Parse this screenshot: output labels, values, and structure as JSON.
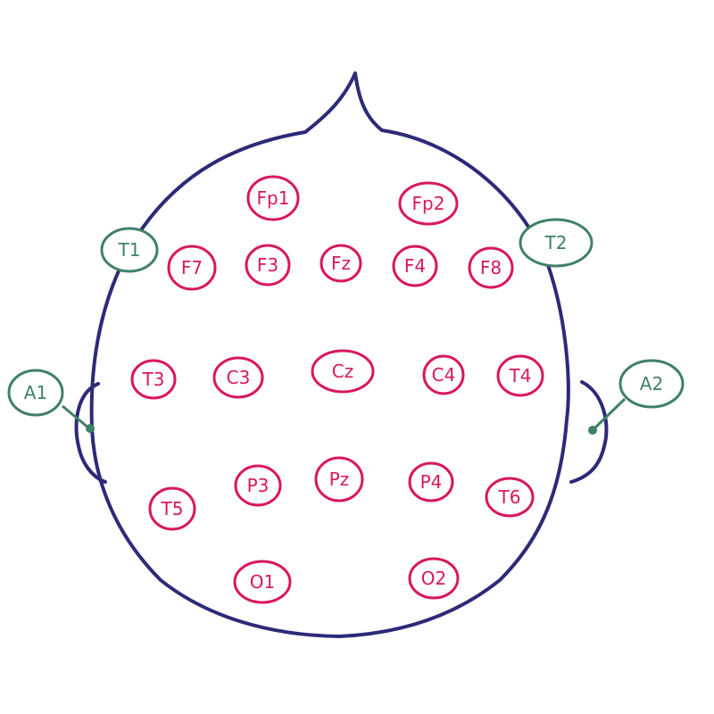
{
  "diagram": {
    "title_hidden": "",
    "colors": {
      "head": "#2d2a78",
      "electrode": "#d8175f",
      "reference": "#3f8068"
    },
    "electrodes": [
      {
        "id": "Fp1",
        "label": "Fp1"
      },
      {
        "id": "Fp2",
        "label": "Fp2"
      },
      {
        "id": "F7",
        "label": "F7"
      },
      {
        "id": "F3",
        "label": "F3"
      },
      {
        "id": "Fz",
        "label": "Fz"
      },
      {
        "id": "F4",
        "label": "F4"
      },
      {
        "id": "F8",
        "label": "F8"
      },
      {
        "id": "T3",
        "label": "T3"
      },
      {
        "id": "C3",
        "label": "C3"
      },
      {
        "id": "Cz",
        "label": "Cz"
      },
      {
        "id": "C4",
        "label": "C4"
      },
      {
        "id": "T4",
        "label": "T4"
      },
      {
        "id": "T5",
        "label": "T5"
      },
      {
        "id": "P3",
        "label": "P3"
      },
      {
        "id": "Pz",
        "label": "Pz"
      },
      {
        "id": "P4",
        "label": "P4"
      },
      {
        "id": "T6",
        "label": "T6"
      },
      {
        "id": "O1",
        "label": "O1"
      },
      {
        "id": "O2",
        "label": "O2"
      }
    ],
    "references": [
      {
        "id": "T1",
        "label": "T1"
      },
      {
        "id": "T2",
        "label": "T2"
      },
      {
        "id": "A1",
        "label": "A1"
      },
      {
        "id": "A2",
        "label": "A2"
      }
    ]
  }
}
